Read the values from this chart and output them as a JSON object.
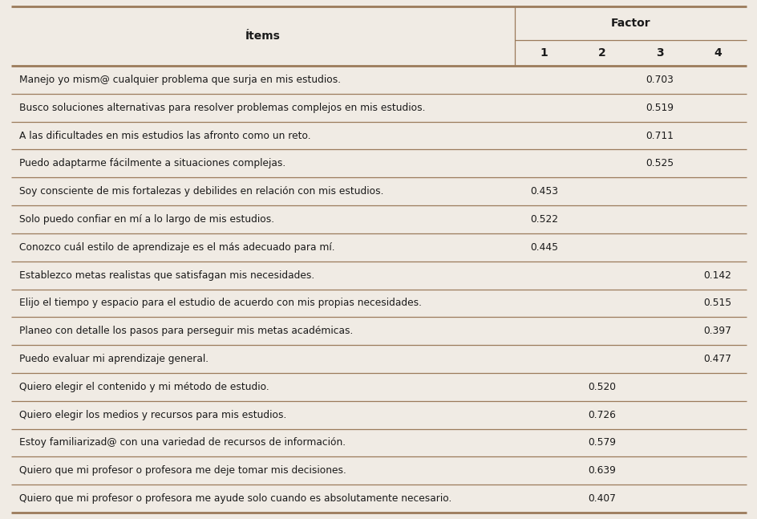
{
  "header_items": "Ítems",
  "header_factor": "Factor",
  "factor_cols": [
    "1",
    "2",
    "3",
    "4"
  ],
  "rows": [
    {
      "item": "Manejo yo mism@ cualquier problema que surja en mis estudios.",
      "f1": "",
      "f2": "",
      "f3": "0.703",
      "f4": ""
    },
    {
      "item": "Busco soluciones alternativas para resolver problemas complejos en mis estudios.",
      "f1": "",
      "f2": "",
      "f3": "0.519",
      "f4": ""
    },
    {
      "item": "A las dificultades en mis estudios las afronto como un reto.",
      "f1": "",
      "f2": "",
      "f3": "0.711",
      "f4": ""
    },
    {
      "item": "Puedo adaptarme fácilmente a situaciones complejas.",
      "f1": "",
      "f2": "",
      "f3": "0.525",
      "f4": ""
    },
    {
      "item": "Soy consciente de mis fortalezas y debilides en relación con mis estudios.",
      "f1": "0.453",
      "f2": "",
      "f3": "",
      "f4": ""
    },
    {
      "item": "Solo puedo confiar en mí a lo largo de mis estudios.",
      "f1": "0.522",
      "f2": "",
      "f3": "",
      "f4": ""
    },
    {
      "item": "Conozco cuál estilo de aprendizaje es el más adecuado para mí.",
      "f1": "0.445",
      "f2": "",
      "f3": "",
      "f4": ""
    },
    {
      "item": "Establezco metas realistas que satisfagan mis necesidades.",
      "f1": "",
      "f2": "",
      "f3": "",
      "f4": "0.142"
    },
    {
      "item": "Elijo el tiempo y espacio para el estudio de acuerdo con mis propias necesidades.",
      "f1": "",
      "f2": "",
      "f3": "",
      "f4": "0.515"
    },
    {
      "item": "Planeo con detalle los pasos para perseguir mis metas académicas.",
      "f1": "",
      "f2": "",
      "f3": "",
      "f4": "0.397"
    },
    {
      "item": "Puedo evaluar mi aprendizaje general.",
      "f1": "",
      "f2": "",
      "f3": "",
      "f4": "0.477"
    },
    {
      "item": "Quiero elegir el contenido y mi método de estudio.",
      "f1": "",
      "f2": "0.520",
      "f3": "",
      "f4": ""
    },
    {
      "item": "Quiero elegir los medios y recursos para mis estudios.",
      "f1": "",
      "f2": "0.726",
      "f3": "",
      "f4": ""
    },
    {
      "item": "Estoy familiarizad@ con una variedad de recursos de información.",
      "f1": "",
      "f2": "0.579",
      "f3": "",
      "f4": ""
    },
    {
      "item": "Quiero que mi profesor o profesora me deje tomar mis decisiones.",
      "f1": "",
      "f2": "0.639",
      "f3": "",
      "f4": ""
    },
    {
      "item": "Quiero que mi profesor o profesora me ayude solo cuando es absolutamente necesario.",
      "f1": "",
      "f2": "0.407",
      "f3": "",
      "f4": ""
    }
  ],
  "bg_color": "#f0ebe4",
  "line_color": "#9b7b5b",
  "text_color": "#1a1a1a",
  "fig_width": 9.45,
  "fig_height": 6.47,
  "dpi": 100
}
